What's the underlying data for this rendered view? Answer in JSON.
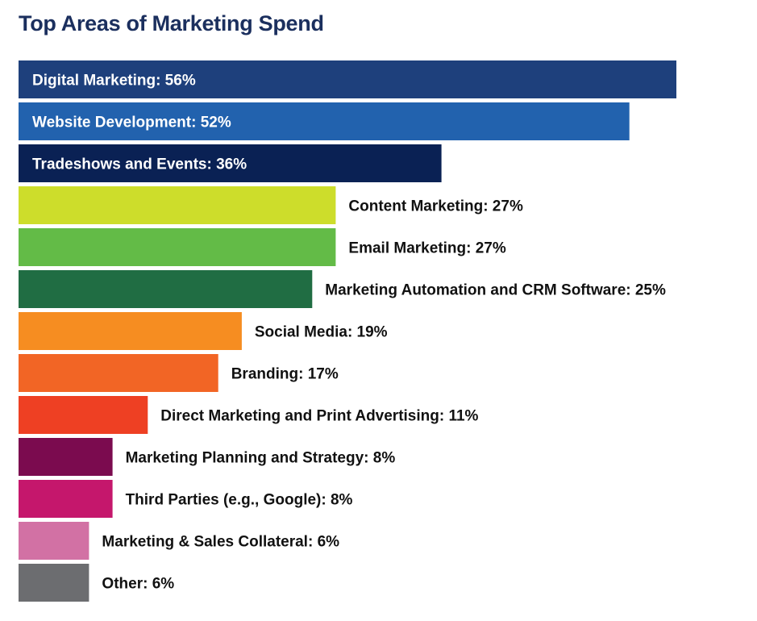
{
  "chart_data": {
    "type": "bar",
    "orientation": "horizontal",
    "title": "Top Areas of Marketing Spend",
    "xlabel": "",
    "ylabel": "",
    "xlim": [
      0,
      56
    ],
    "grid": false,
    "legend": "none",
    "unit": "%",
    "categories": [
      "Digital Marketing",
      "Website Development",
      "Tradeshows and Events",
      "Content Marketing",
      "Email Marketing",
      "Marketing Automation and CRM Software",
      "Social Media",
      "Branding",
      "Direct Marketing and Print Advertising",
      "Marketing Planning and Strategy",
      "Third Parties (e.g., Google)",
      "Marketing & Sales Collateral",
      "Other"
    ],
    "values": [
      56,
      52,
      36,
      27,
      27,
      25,
      19,
      17,
      11,
      8,
      8,
      6,
      6
    ],
    "labels": [
      "Digital Marketing: 56%",
      "Website Development: 52%",
      "Tradeshows and Events: 36%",
      "Content Marketing: 27%",
      "Email Marketing: 27%",
      "Marketing Automation and CRM Software: 25%",
      "Social Media: 19%",
      "Branding: 17%",
      "Direct Marketing and Print Advertising: 11%",
      "Marketing Planning and Strategy: 8%",
      "Third Parties (e.g., Google): 8%",
      "Marketing & Sales Collateral: 6%",
      "Other: 6%"
    ],
    "colors": [
      "#1e407c",
      "#2262ae",
      "#0a2154",
      "#cddd2b",
      "#63bb47",
      "#206d43",
      "#f68d21",
      "#f26525",
      "#ee4023",
      "#7b0b4f",
      "#c5176c",
      "#d271a4",
      "#6c6d70"
    ],
    "label_inside": [
      true,
      true,
      true,
      false,
      false,
      false,
      false,
      false,
      false,
      false,
      false,
      false,
      false
    ],
    "inside_label_color": "#ffffff",
    "outside_label_color": "#111111"
  }
}
